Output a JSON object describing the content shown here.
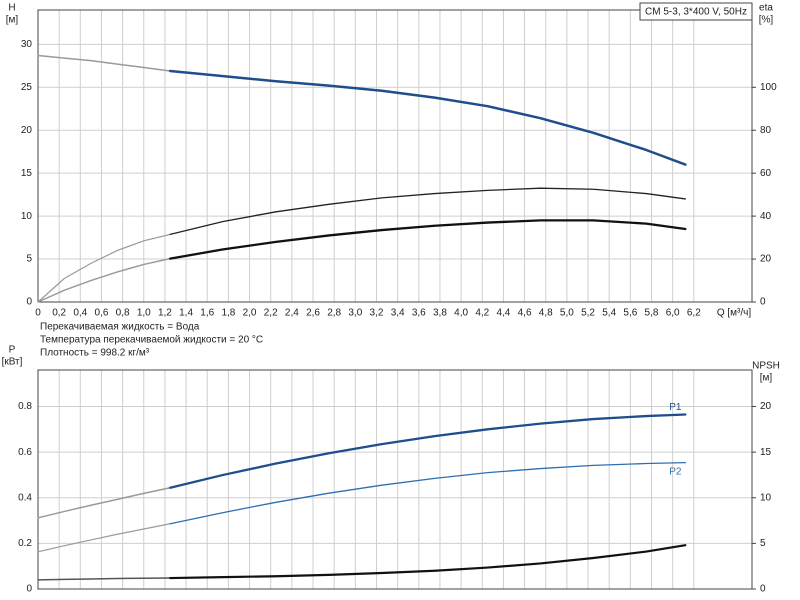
{
  "chart_data": [
    {
      "type": "line",
      "title": "CM 5-3, 3*400 V, 50Hz",
      "ylabel": [
        "H",
        "[м]"
      ],
      "y2label": [
        "eta",
        "[%]"
      ],
      "xlabel": "Q [м³/ч]",
      "notes": [
        "Перекачиваемая жидкость = Вода",
        "Температура перекачиваемой жидкости = 20 °C",
        "Плотность = 998.2 кг/м³"
      ],
      "xlim": [
        0,
        6.75
      ],
      "xticks": [
        0,
        {
          "value": 0.2,
          "label": "0,2"
        },
        {
          "value": 0.4,
          "label": "0,4"
        },
        {
          "value": 0.6,
          "label": "0,6"
        },
        {
          "value": 0.8,
          "label": "0,8"
        },
        {
          "value": 1.0,
          "label": "1,0"
        },
        {
          "value": 1.2,
          "label": "1,2"
        },
        {
          "value": 1.4,
          "label": "1,4"
        },
        {
          "value": 1.6,
          "label": "1,6"
        },
        {
          "value": 1.8,
          "label": "1,8"
        },
        {
          "value": 2.0,
          "label": "2,0"
        },
        {
          "value": 2.2,
          "label": "2,2"
        },
        {
          "value": 2.4,
          "label": "2,4"
        },
        {
          "value": 2.6,
          "label": "2,6"
        },
        {
          "value": 2.8,
          "label": "2,8"
        },
        {
          "value": 3.0,
          "label": "3,0"
        },
        {
          "value": 3.2,
          "label": "3,2"
        },
        {
          "value": 3.4,
          "label": "3,4"
        },
        {
          "value": 3.6,
          "label": "3,6"
        },
        {
          "value": 3.8,
          "label": "3,8"
        },
        {
          "value": 4.0,
          "label": "4,0"
        },
        {
          "value": 4.2,
          "label": "4,2"
        },
        {
          "value": 4.4,
          "label": "4,4"
        },
        {
          "value": 4.6,
          "label": "4,6"
        },
        {
          "value": 4.8,
          "label": "4,8"
        },
        {
          "value": 5.0,
          "label": "5,0"
        },
        {
          "value": 5.2,
          "label": "5,2"
        },
        {
          "value": 5.4,
          "label": "5,4"
        },
        {
          "value": 5.6,
          "label": "5,6"
        },
        {
          "value": 5.8,
          "label": "5,8"
        },
        {
          "value": 6.0,
          "label": "6,0"
        },
        {
          "value": 6.2,
          "label": "6,2"
        }
      ],
      "ylim": [
        0,
        34
      ],
      "yticks": [
        0,
        5,
        10,
        15,
        20,
        25,
        30
      ],
      "y2lim": [
        0,
        136
      ],
      "y2ticks": [
        0,
        20,
        40,
        60,
        80,
        100
      ],
      "grid": true,
      "series": [
        {
          "axis": "y",
          "color": "#9a9a9a",
          "width": 1.5,
          "x": [
            0,
            0.25,
            0.5,
            0.75,
            1,
            1.25
          ],
          "values": [
            28.7,
            28.4,
            28.1,
            27.7,
            27.3,
            26.9
          ]
        },
        {
          "axis": "y",
          "color": "#1f4e8c",
          "width": 2.5,
          "x": [
            1.25,
            1.75,
            2.25,
            2.75,
            3.25,
            3.75,
            4.25,
            4.75,
            5.25,
            5.75,
            6.12
          ],
          "values": [
            26.9,
            26.3,
            25.7,
            25.2,
            24.6,
            23.8,
            22.8,
            21.4,
            19.7,
            17.7,
            16.0
          ]
        },
        {
          "axis": "y2",
          "color": "#9a9a9a",
          "width": 1.2,
          "x": [
            0,
            0.25,
            0.5,
            0.75,
            1,
            1.25
          ],
          "values": [
            0,
            11,
            18,
            24,
            28.5,
            31.5
          ]
        },
        {
          "axis": "y2",
          "color": "#222222",
          "width": 1.3,
          "x": [
            1.25,
            1.75,
            2.25,
            2.75,
            3.25,
            3.75,
            4.25,
            4.75,
            5.25,
            5.75,
            6.12
          ],
          "values": [
            31.5,
            37.5,
            42,
            45.5,
            48.5,
            50.5,
            52,
            53,
            52.5,
            50.5,
            48
          ]
        },
        {
          "axis": "y2",
          "color": "#9a9a9a",
          "width": 1.5,
          "x": [
            0,
            0.25,
            0.5,
            0.75,
            1,
            1.25
          ],
          "values": [
            0,
            5.5,
            10,
            14,
            17.5,
            20.2
          ]
        },
        {
          "axis": "y2",
          "color": "#111111",
          "width": 2.3,
          "x": [
            1.25,
            1.75,
            2.25,
            2.75,
            3.25,
            3.75,
            4.25,
            4.75,
            5.25,
            5.75,
            6.12
          ],
          "values": [
            20.2,
            24.5,
            28,
            31,
            33.5,
            35.5,
            37,
            38,
            38,
            36.5,
            34
          ]
        }
      ]
    },
    {
      "type": "line",
      "ylabel": [
        "P",
        "[кВт]"
      ],
      "y2label": [
        "NPSH",
        "[м]"
      ],
      "xlim": [
        0,
        6.75
      ],
      "ylim": [
        0,
        0.96
      ],
      "yticks": [
        0,
        0.2,
        0.4,
        0.6,
        0.8
      ],
      "y2lim": [
        0,
        24
      ],
      "y2ticks": [
        0,
        5,
        10,
        15,
        20
      ],
      "grid": true,
      "series": [
        {
          "axis": "y",
          "color": "#9a9a9a",
          "width": 1.5,
          "x": [
            0,
            0.25,
            0.5,
            0.75,
            1,
            1.25
          ],
          "values": [
            0.312,
            0.34,
            0.367,
            0.393,
            0.419,
            0.444
          ]
        },
        {
          "name": "P1",
          "axis": "y",
          "color": "#1f4e8c",
          "width": 2.3,
          "x": [
            1.25,
            1.75,
            2.25,
            2.75,
            3.25,
            3.75,
            4.25,
            4.75,
            5.25,
            5.75,
            6.12
          ],
          "values": [
            0.444,
            0.5,
            0.55,
            0.595,
            0.635,
            0.67,
            0.7,
            0.725,
            0.745,
            0.758,
            0.765
          ]
        },
        {
          "axis": "y",
          "color": "#9a9a9a",
          "width": 1.2,
          "x": [
            0,
            0.25,
            0.5,
            0.75,
            1,
            1.25
          ],
          "values": [
            0.163,
            0.19,
            0.215,
            0.24,
            0.263,
            0.286
          ]
        },
        {
          "name": "P2",
          "axis": "y",
          "color": "#2f6fb0",
          "width": 1.3,
          "x": [
            1.25,
            1.75,
            2.25,
            2.75,
            3.25,
            3.75,
            4.25,
            4.75,
            5.25,
            5.75,
            6.12
          ],
          "values": [
            0.286,
            0.335,
            0.38,
            0.42,
            0.455,
            0.485,
            0.51,
            0.528,
            0.542,
            0.55,
            0.554
          ]
        },
        {
          "axis": "y2",
          "color": "#555555",
          "width": 1.5,
          "x": [
            0,
            0.25,
            0.5,
            0.75,
            1,
            1.25
          ],
          "values": [
            1.0,
            1.05,
            1.1,
            1.15,
            1.18,
            1.2
          ]
        },
        {
          "axis": "y2",
          "color": "#111111",
          "width": 2.2,
          "x": [
            1.25,
            1.75,
            2.25,
            2.75,
            3.25,
            3.75,
            4.25,
            4.75,
            5.25,
            5.75,
            6.12
          ],
          "values": [
            1.2,
            1.3,
            1.4,
            1.55,
            1.75,
            2.0,
            2.35,
            2.8,
            3.4,
            4.1,
            4.8
          ]
        }
      ]
    }
  ]
}
